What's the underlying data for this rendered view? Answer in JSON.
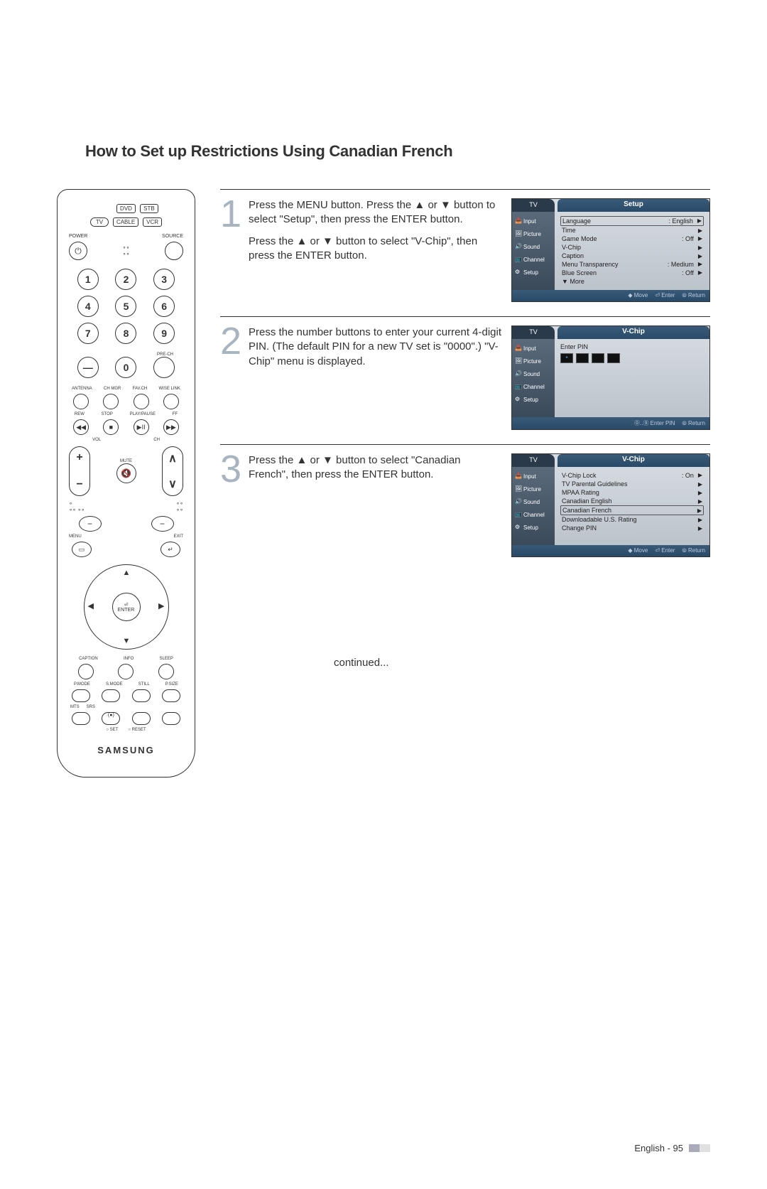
{
  "title": "How to Set up Restrictions Using Canadian French",
  "remote": {
    "devices_row1": [
      "DVD",
      "STB"
    ],
    "devices_row2_left": "TV",
    "devices_row2": [
      "CABLE",
      "VCR"
    ],
    "power_label": "POWER",
    "source_label": "SOURCE",
    "numbers": [
      "1",
      "2",
      "3",
      "4",
      "5",
      "6",
      "7",
      "8",
      "9"
    ],
    "zero": "0",
    "prech": "PRE-CH",
    "dash": "—",
    "antenna_row": [
      "ANTENNA",
      "CH MGR",
      "FAV.CH",
      "WISE LINK"
    ],
    "transport_row": [
      "REW",
      "STOP",
      "PLAY/PAUSE",
      "FF"
    ],
    "transport_icons": [
      "◀◀",
      "■",
      "▶II",
      "▶▶"
    ],
    "vol": "VOL",
    "ch": "CH",
    "mute": "MUTE",
    "menu": "MENU",
    "exit": "EXIT",
    "enter": "ENTER",
    "bottom_labels_1": [
      "CAPTION",
      "INFO",
      "SLEEP"
    ],
    "bottom_labels_2": [
      "P.MODE",
      "S.MODE",
      "STILL",
      "P.SIZE"
    ],
    "bottom_labels_3": [
      "MTS",
      "SRS"
    ],
    "set_reset": [
      "○ SET",
      "○ RESET"
    ],
    "brand": "SAMSUNG"
  },
  "steps": [
    {
      "num": "1",
      "paras": [
        "Press the MENU button. Press the ▲ or ▼ button to select \"Setup\", then press the ENTER button.",
        "Press the ▲ or ▼ button to select \"V-Chip\", then press the ENTER button."
      ],
      "osd": {
        "tv": "TV",
        "title": "Setup",
        "nav": [
          "Input",
          "Picture",
          "Sound",
          "Channel",
          "Setup"
        ],
        "rows": [
          {
            "label": "Language",
            "value": ": English",
            "boxed": true,
            "arrow": "▶"
          },
          {
            "label": "Time",
            "value": "",
            "arrow": "▶"
          },
          {
            "label": "Game Mode",
            "value": ": Off",
            "arrow": "▶"
          },
          {
            "label": "V-Chip",
            "value": "",
            "arrow": "▶"
          },
          {
            "label": "Caption",
            "value": "",
            "arrow": "▶"
          },
          {
            "label": "Menu Transparency",
            "value": ": Medium",
            "arrow": "▶"
          },
          {
            "label": "Blue Screen",
            "value": ": Off",
            "arrow": "▶"
          },
          {
            "label": "▼ More",
            "value": "",
            "arrow": ""
          }
        ],
        "footer": [
          "◆ Move",
          "⏎ Enter",
          "⦾ Return"
        ]
      }
    },
    {
      "num": "2",
      "paras": [
        "Press the number buttons to enter your current 4-digit PIN. (The default PIN for a new TV set is \"0000\".) \"V-Chip\" menu is displayed."
      ],
      "osd": {
        "tv": "TV",
        "title": "V-Chip",
        "nav": [
          "Input",
          "Picture",
          "Sound",
          "Channel",
          "Setup"
        ],
        "pin_label": "Enter PIN",
        "pin": [
          "*",
          "",
          "",
          ""
        ],
        "footer": [
          "⓪..⑨ Enter PIN",
          "⦾ Return"
        ]
      }
    },
    {
      "num": "3",
      "paras": [
        "Press the ▲ or ▼ button to select \"Canadian French\", then press the ENTER button."
      ],
      "osd": {
        "tv": "TV",
        "title": "V-Chip",
        "nav": [
          "Input",
          "Picture",
          "Sound",
          "Channel",
          "Setup"
        ],
        "rows": [
          {
            "label": "V-Chip Lock",
            "value": ": On",
            "arrow": "▶"
          },
          {
            "label": "TV Parental Guidelines",
            "value": "",
            "arrow": "▶"
          },
          {
            "label": "MPAA Rating",
            "value": "",
            "arrow": "▶"
          },
          {
            "label": "Canadian English",
            "value": "",
            "arrow": "▶"
          },
          {
            "label": "Canadian French",
            "value": "",
            "boxed": true,
            "arrow": "▶"
          },
          {
            "label": "Downloadable U.S. Rating",
            "value": "",
            "arrow": "▶"
          },
          {
            "label": "Change PIN",
            "value": "",
            "arrow": "▶"
          }
        ],
        "footer": [
          "◆ Move",
          "⏎ Enter",
          "⦾ Return"
        ]
      }
    }
  ],
  "continued": "continued...",
  "footer_text": "English - 95"
}
